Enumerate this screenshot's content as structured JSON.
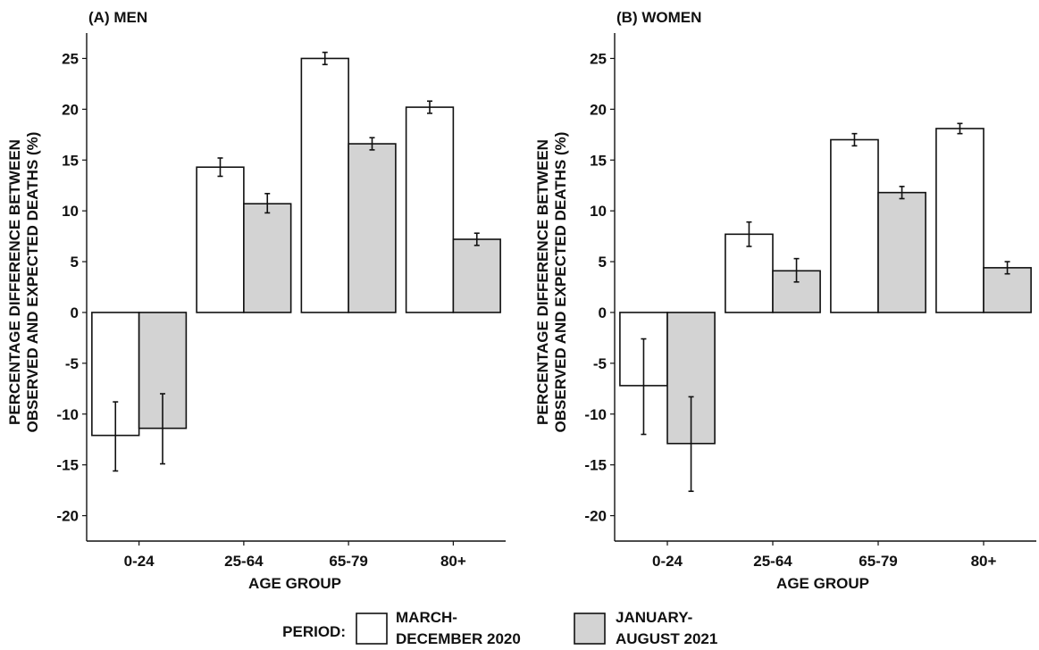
{
  "chart_data": [
    {
      "type": "bar",
      "title": "(A) MEN",
      "xlabel": "AGE GROUP",
      "ylabel": "PERCENTAGE DIFFERENCE BETWEEN OBSERVED AND EXPECTED DEATHS (%)",
      "categories": [
        "0-24",
        "25-64",
        "65-79",
        "80+"
      ],
      "ylim": [
        -22.5,
        27.5
      ],
      "yticks": [
        -20,
        -15,
        -10,
        -5,
        0,
        5,
        10,
        15,
        20,
        25
      ],
      "series": [
        {
          "name": "MARCH-DECEMBER 2020",
          "values": [
            -12.1,
            14.3,
            25.0,
            20.2
          ],
          "err_low": [
            -15.6,
            13.4,
            24.4,
            19.6
          ],
          "err_high": [
            -8.8,
            15.2,
            25.6,
            20.8
          ]
        },
        {
          "name": "JANUARY-AUGUST 2021",
          "values": [
            -11.4,
            10.7,
            16.6,
            7.2
          ],
          "err_low": [
            -14.9,
            9.8,
            16.0,
            6.6
          ],
          "err_high": [
            -8.0,
            11.7,
            17.2,
            7.8
          ]
        }
      ]
    },
    {
      "type": "bar",
      "title": "(B) WOMEN",
      "xlabel": "AGE GROUP",
      "ylabel": "PERCENTAGE DIFFERENCE BETWEEN OBSERVED AND EXPECTED DEATHS (%)",
      "categories": [
        "0-24",
        "25-64",
        "65-79",
        "80+"
      ],
      "ylim": [
        -22.5,
        27.5
      ],
      "yticks": [
        -20,
        -15,
        -10,
        -5,
        0,
        5,
        10,
        15,
        20,
        25
      ],
      "series": [
        {
          "name": "MARCH-DECEMBER 2020",
          "values": [
            -7.2,
            7.7,
            17.0,
            18.1
          ],
          "err_low": [
            -12.0,
            6.5,
            16.4,
            17.6
          ],
          "err_high": [
            -2.6,
            8.9,
            17.6,
            18.6
          ]
        },
        {
          "name": "JANUARY-AUGUST 2021",
          "values": [
            -12.9,
            4.1,
            11.8,
            4.4
          ],
          "err_low": [
            -17.6,
            3.0,
            11.2,
            3.8
          ],
          "err_high": [
            -8.3,
            5.3,
            12.4,
            5.0
          ]
        }
      ]
    }
  ],
  "legend": {
    "title": "PERIOD:",
    "items": [
      {
        "line1": "MARCH-",
        "line2": "DECEMBER 2020",
        "color": "#ffffff"
      },
      {
        "line1": "JANUARY-",
        "line2": "AUGUST 2021",
        "color": "#d3d3d3"
      }
    ]
  },
  "colors": {
    "series": [
      "#ffffff",
      "#d3d3d3"
    ],
    "stroke": "#111111"
  }
}
